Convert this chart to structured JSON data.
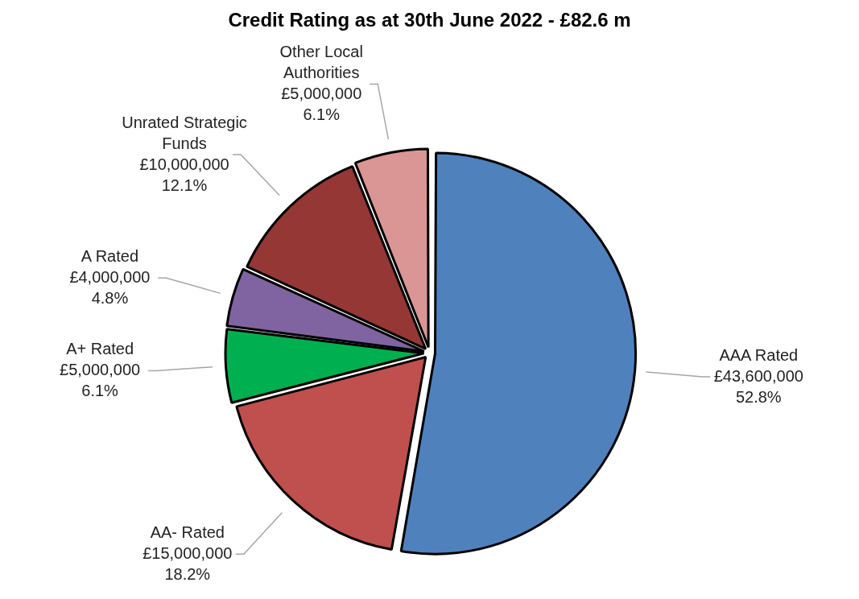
{
  "chart_data": {
    "type": "pie",
    "title": "Credit Rating as at 30th June 2022 - £82.6 m",
    "categories": [
      "AAA Rated",
      "AA- Rated",
      "A+ Rated",
      "A Rated",
      "Unrated Strategic Funds",
      "Other Local Authorities"
    ],
    "values": [
      43600000,
      15000000,
      5000000,
      4000000,
      10000000,
      5000000
    ],
    "colors": [
      "#4f81bd",
      "#c0504d",
      "#00b050",
      "#8064a2",
      "#953735",
      "#d99694"
    ],
    "value_labels": [
      "£43,600,000\n52.8%",
      "£15,000,000\n18.2%",
      "£5,000,000\n6.1%",
      "£4,000,000\n4.8%",
      "£10,000,000\n12.1%",
      "£5,000,000\n6.1%"
    ],
    "legend": false
  }
}
